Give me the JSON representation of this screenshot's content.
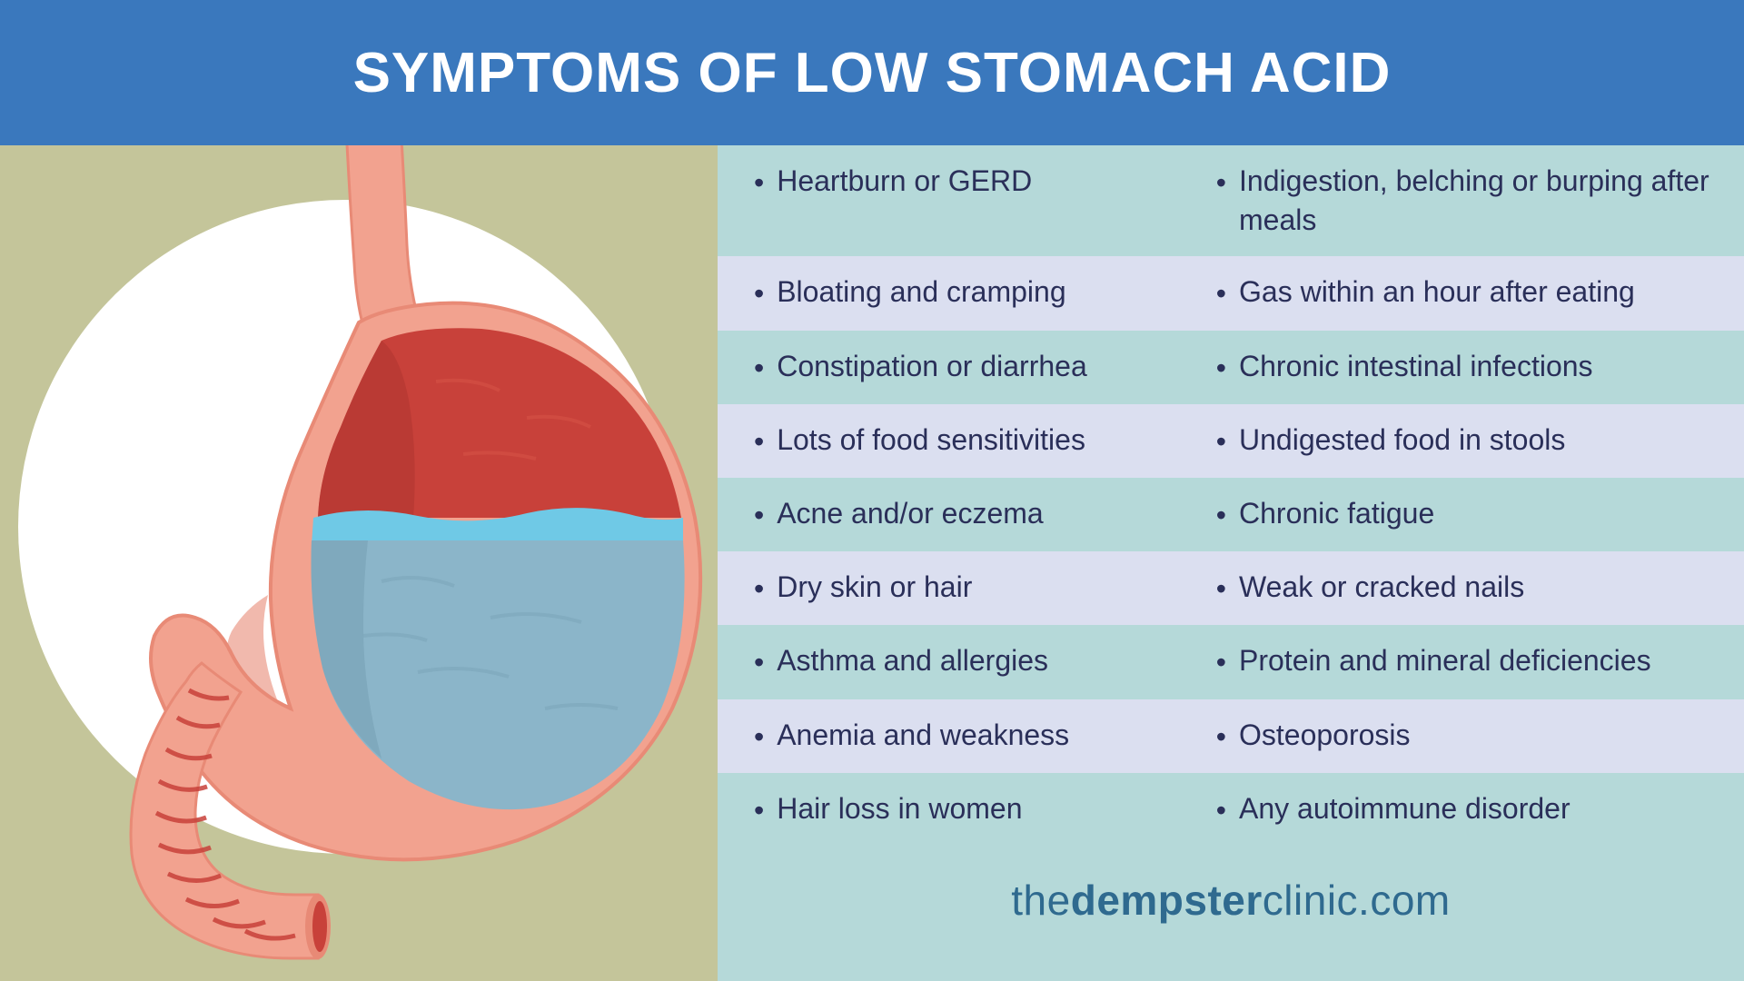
{
  "header": {
    "title": "SYMPTOMS OF LOW STOMACH ACID",
    "bg_color": "#3a78bd",
    "text_color": "#ffffff",
    "font_size": 62
  },
  "left_panel": {
    "bg_color": "#c4c59a",
    "circle_color": "#ffffff",
    "circle_diameter": 720,
    "stomach": {
      "outline_color": "#f2a28f",
      "outline_dark": "#e88a76",
      "inner_red": "#c8413a",
      "inner_red_dark": "#b13530",
      "liquid_top": "#6fc9e6",
      "liquid_main": "#8bb5c9",
      "liquid_shadow": "#7aa4b8",
      "tube_color": "#e66a5a",
      "tube_ridge": "#c8413a"
    }
  },
  "right_panel": {
    "bg_color": "#b5d9d9",
    "row_alt_color": "#dbdff0",
    "text_color": "#2a2f59",
    "bullet_color": "#2a2f59",
    "font_size": 32,
    "rows": [
      {
        "left": "Heartburn or GERD",
        "right": "Indigestion, belching or burping after meals",
        "alt": false
      },
      {
        "left": "Bloating and cramping",
        "right": "Gas within an hour after eating",
        "alt": true
      },
      {
        "left": "Constipation or diarrhea",
        "right": "Chronic intestinal infections",
        "alt": false
      },
      {
        "left": "Lots of food sensitivities",
        "right": "Undigested food in stools",
        "alt": true
      },
      {
        "left": "Acne and/or eczema",
        "right": "Chronic fatigue",
        "alt": false
      },
      {
        "left": "Dry skin or hair",
        "right": "Weak or cracked nails",
        "alt": true
      },
      {
        "left": "Asthma and allergies",
        "right": "Protein and mineral deficiencies",
        "alt": false
      },
      {
        "left": "Anemia and weakness",
        "right": "Osteoporosis",
        "alt": true
      },
      {
        "left": "Hair loss in women",
        "right": "Any autoimmune disorder",
        "alt": false
      }
    ]
  },
  "footer": {
    "pre": "the",
    "bold": "dempster",
    "post": "clinic.com",
    "color": "#2f6a8f",
    "font_size": 46
  }
}
